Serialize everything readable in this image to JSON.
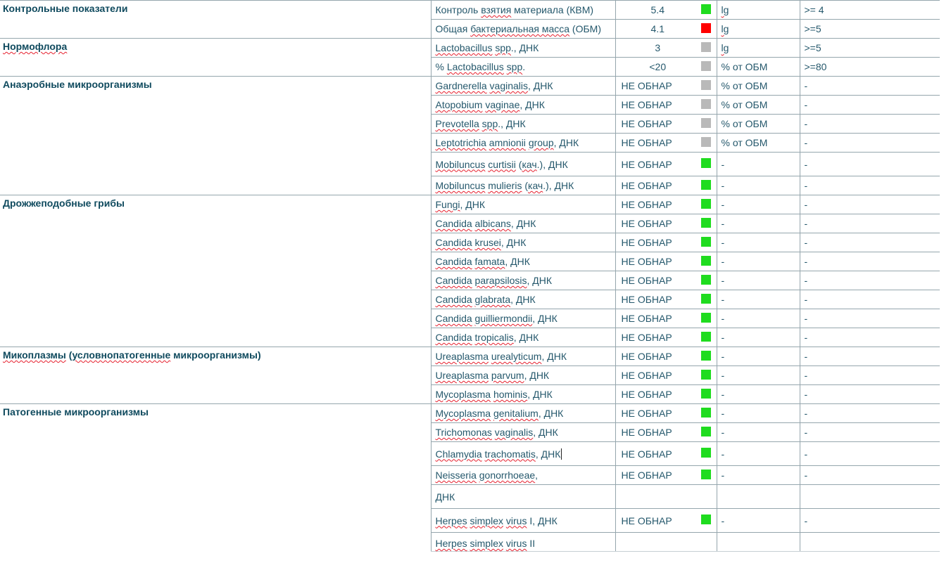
{
  "colors": {
    "green": "#1fdc1f",
    "red": "#ff0000",
    "gray": "#b9b9b9",
    "border": "#95a6ad",
    "heading": "#0f4a5e",
    "text": "#25586c"
  },
  "groups": [
    {
      "name": "Контрольные показатели",
      "name_spell": false,
      "rows": [
        {
          "test_parts": [
            [
              "Контроль ",
              false
            ],
            [
              "взятия",
              true
            ],
            [
              " материала (КВМ)",
              false
            ]
          ],
          "value": "5.4",
          "indicator": "green",
          "unit": "lg",
          "unit_spell": true,
          "range": ">= 4"
        },
        {
          "test_parts": [
            [
              "Общая ",
              false
            ],
            [
              "бактериальная масса",
              true
            ],
            [
              " (ОБМ)",
              false
            ]
          ],
          "value": "4.1",
          "indicator": "red",
          "unit": "lg",
          "unit_spell": true,
          "range": ">=5"
        }
      ]
    },
    {
      "name": "Нормофлора",
      "name_spell": true,
      "rows": [
        {
          "test_parts": [
            [
              "Lactobacillus",
              true
            ],
            [
              " ",
              false
            ],
            [
              "spp",
              true
            ],
            [
              ".",
              false
            ],
            [
              ", ДНК",
              false
            ]
          ],
          "value": "3",
          "indicator": "gray",
          "unit": "lg",
          "unit_spell": true,
          "range": ">=5"
        },
        {
          "test_parts": [
            [
              "% ",
              false
            ],
            [
              "Lactobacillus",
              true
            ],
            [
              " ",
              false
            ],
            [
              "spp",
              true
            ],
            [
              ".",
              false
            ]
          ],
          "value": "<20",
          "indicator": "gray",
          "unit": "% от ОБМ",
          "unit_spell": false,
          "range": ">=80"
        }
      ]
    },
    {
      "name": "Анаэробные микроорганизмы",
      "name_spell": false,
      "rows": [
        {
          "test_parts": [
            [
              "Gardnerella",
              true
            ],
            [
              " ",
              false
            ],
            [
              "vaginalis",
              true
            ],
            [
              ", ДНК",
              false
            ]
          ],
          "value": "НЕ ОБНАР",
          "indicator": "gray",
          "unit": "% от ОБМ",
          "unit_spell": false,
          "range": "-"
        },
        {
          "test_parts": [
            [
              "Atopobium",
              true
            ],
            [
              " ",
              false
            ],
            [
              "vaginae",
              true
            ],
            [
              ", ДНК",
              false
            ]
          ],
          "value": "НЕ ОБНАР",
          "indicator": "gray",
          "unit": "% от ОБМ",
          "unit_spell": false,
          "range": "-"
        },
        {
          "test_parts": [
            [
              "Prevotella",
              true
            ],
            [
              " ",
              false
            ],
            [
              "spp",
              true
            ],
            [
              ".",
              false
            ],
            [
              ", ДНК",
              false
            ]
          ],
          "value": "НЕ ОБНАР",
          "indicator": "gray",
          "unit": "% от ОБМ",
          "unit_spell": false,
          "range": "-"
        },
        {
          "test_parts": [
            [
              "Leptotrichia",
              true
            ],
            [
              " ",
              false
            ],
            [
              "amnionii",
              true
            ],
            [
              " ",
              false
            ],
            [
              "group",
              true
            ],
            [
              ", ДНК",
              false
            ]
          ],
          "value": "НЕ ОБНАР",
          "indicator": "gray",
          "unit": "% от ОБМ",
          "unit_spell": false,
          "range": "-"
        },
        {
          "test_parts": [
            [
              "Mobiluncus",
              true
            ],
            [
              " ",
              false
            ],
            [
              "curtisii",
              true
            ],
            [
              " (",
              false
            ],
            [
              "кач",
              true
            ],
            [
              ".)",
              false
            ],
            [
              ", ДНК",
              false
            ]
          ],
          "value": "НЕ ОБНАР",
          "indicator": "green",
          "unit": "-",
          "unit_spell": false,
          "range": "-",
          "tall": true
        },
        {
          "test_parts": [
            [
              "Mobiluncus",
              true
            ],
            [
              " ",
              false
            ],
            [
              "mulieris",
              true
            ],
            [
              " (",
              false
            ],
            [
              "кач",
              true
            ],
            [
              ".)",
              false
            ],
            [
              ", ДНК",
              false
            ]
          ],
          "value": "НЕ ОБНАР",
          "indicator": "green",
          "unit": "-",
          "unit_spell": false,
          "range": "-"
        }
      ]
    },
    {
      "name": "Дрожжеподобные грибы",
      "name_spell": false,
      "rows": [
        {
          "test_parts": [
            [
              "Fungi",
              true
            ],
            [
              ", ДНК",
              false
            ]
          ],
          "value": "НЕ ОБНАР",
          "indicator": "green",
          "unit": "-",
          "unit_spell": false,
          "range": "-"
        },
        {
          "test_parts": [
            [
              "Candida",
              true
            ],
            [
              " ",
              false
            ],
            [
              "albicans",
              true
            ],
            [
              ", ДНК",
              false
            ]
          ],
          "value": "НЕ ОБНАР",
          "indicator": "green",
          "unit": "-",
          "unit_spell": false,
          "range": "-"
        },
        {
          "test_parts": [
            [
              "Candida",
              true
            ],
            [
              " ",
              false
            ],
            [
              "krusei",
              true
            ],
            [
              ", ДНК",
              false
            ]
          ],
          "value": "НЕ ОБНАР",
          "indicator": "green",
          "unit": "-",
          "unit_spell": false,
          "range": "-"
        },
        {
          "test_parts": [
            [
              "Candida",
              true
            ],
            [
              " ",
              false
            ],
            [
              "famata",
              true
            ],
            [
              ", ДНК",
              false
            ]
          ],
          "value": "НЕ ОБНАР",
          "indicator": "green",
          "unit": "-",
          "unit_spell": false,
          "range": "-"
        },
        {
          "test_parts": [
            [
              "Candida",
              true
            ],
            [
              " ",
              false
            ],
            [
              "parapsilosis",
              true
            ],
            [
              ", ДНК",
              false
            ]
          ],
          "value": "НЕ ОБНАР",
          "indicator": "green",
          "unit": "-",
          "unit_spell": false,
          "range": "-"
        },
        {
          "test_parts": [
            [
              "Candida",
              true
            ],
            [
              " ",
              false
            ],
            [
              "glabrata",
              true
            ],
            [
              ", ДНК",
              false
            ]
          ],
          "value": "НЕ ОБНАР",
          "indicator": "green",
          "unit": "-",
          "unit_spell": false,
          "range": "-"
        },
        {
          "test_parts": [
            [
              "Candida",
              true
            ],
            [
              " ",
              false
            ],
            [
              "guilliermondii",
              true
            ],
            [
              ", ДНК",
              false
            ]
          ],
          "value": "НЕ ОБНАР",
          "indicator": "green",
          "unit": "-",
          "unit_spell": false,
          "range": "-"
        },
        {
          "test_parts": [
            [
              "Candida",
              true
            ],
            [
              " ",
              false
            ],
            [
              "tropicalis",
              true
            ],
            [
              ", ДНК",
              false
            ]
          ],
          "value": "НЕ ОБНАР",
          "indicator": "green",
          "unit": "-",
          "unit_spell": false,
          "range": "-"
        }
      ]
    },
    {
      "name_parts": [
        [
          "Микоплазмы",
          true
        ],
        [
          " (",
          false
        ],
        [
          "условнопатогенные",
          true
        ],
        [
          " микроорганизмы)",
          false
        ]
      ],
      "rows": [
        {
          "test_parts": [
            [
              "Ureaplasma",
              true
            ],
            [
              " ",
              false
            ],
            [
              "urealyticum",
              true
            ],
            [
              ", ДНК",
              false
            ]
          ],
          "value": "НЕ ОБНАР",
          "indicator": "green",
          "unit": "-",
          "unit_spell": false,
          "range": "-"
        },
        {
          "test_parts": [
            [
              "Ureaplasma",
              true
            ],
            [
              " ",
              false
            ],
            [
              "parvum",
              true
            ],
            [
              ", ДНК",
              false
            ]
          ],
          "value": "НЕ ОБНАР",
          "indicator": "green",
          "unit": "-",
          "unit_spell": false,
          "range": "-"
        },
        {
          "test_parts": [
            [
              "Mycoplasma",
              true
            ],
            [
              " ",
              false
            ],
            [
              "hominis",
              true
            ],
            [
              ", ДНК",
              false
            ]
          ],
          "value": "НЕ ОБНАР",
          "indicator": "green",
          "unit": "-",
          "unit_spell": false,
          "range": "-"
        }
      ]
    },
    {
      "name": "Патогенные микроорганизмы",
      "name_spell": false,
      "rows": [
        {
          "test_parts": [
            [
              "Mycoplasma",
              true
            ],
            [
              " ",
              false
            ],
            [
              "genitalium",
              true
            ],
            [
              ", ДНК",
              false
            ]
          ],
          "value": "НЕ ОБНАР",
          "indicator": "green",
          "unit": "-",
          "unit_spell": false,
          "range": "-"
        },
        {
          "test_parts": [
            [
              "Trichomonas",
              true
            ],
            [
              " ",
              false
            ],
            [
              "vaginalis",
              true
            ],
            [
              ", ДНК",
              false
            ]
          ],
          "value": "НЕ ОБНАР",
          "indicator": "green",
          "unit": "-",
          "unit_spell": false,
          "range": "-"
        },
        {
          "test_parts": [
            [
              "Chlamydia",
              true
            ],
            [
              " ",
              false
            ],
            [
              "trachomatis",
              true
            ],
            [
              ", ДНК",
              false
            ]
          ],
          "value": "НЕ ОБНАР",
          "indicator": "green",
          "unit": "-",
          "unit_spell": false,
          "range": "-",
          "caret": true,
          "tall": true
        },
        {
          "test_parts": [
            [
              "Neisseria",
              true
            ],
            [
              " ",
              false
            ],
            [
              "gonorrhoeae",
              true
            ],
            [
              ",",
              false
            ]
          ],
          "value": "НЕ ОБНАР",
          "indicator": "green",
          "unit": "-",
          "unit_spell": false,
          "range": "-"
        },
        {
          "test_parts": [
            [
              "ДНК",
              false
            ]
          ],
          "value": "",
          "indicator": "",
          "unit": "",
          "unit_spell": false,
          "range": "",
          "spacer": true
        },
        {
          "test_parts": [
            [
              "Herpes",
              true
            ],
            [
              " ",
              false
            ],
            [
              "simplex",
              true
            ],
            [
              " ",
              false
            ],
            [
              "virus",
              true
            ],
            [
              " I, ДНК",
              false
            ]
          ],
          "value": "НЕ ОБНАР",
          "indicator": "green",
          "unit": "-",
          "unit_spell": false,
          "range": "-",
          "tall": true
        },
        {
          "test_parts": [
            [
              "Herpes",
              true
            ],
            [
              " ",
              false
            ],
            [
              "simplex",
              true
            ],
            [
              " ",
              false
            ],
            [
              "virus",
              true
            ],
            [
              " II",
              false
            ]
          ],
          "value": "",
          "indicator": "",
          "unit": "",
          "unit_spell": false,
          "range": "",
          "cutoff": true
        }
      ]
    }
  ]
}
